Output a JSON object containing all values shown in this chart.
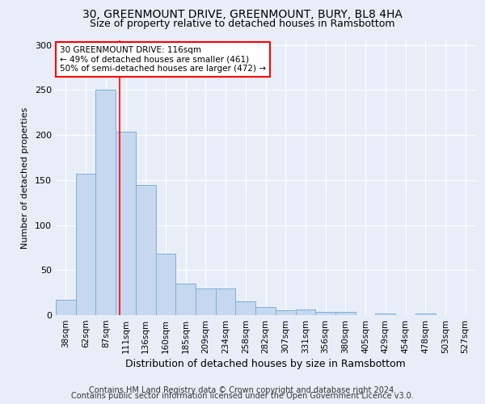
{
  "title1": "30, GREENMOUNT DRIVE, GREENMOUNT, BURY, BL8 4HA",
  "title2": "Size of property relative to detached houses in Ramsbottom",
  "xlabel": "Distribution of detached houses by size in Ramsbottom",
  "ylabel": "Number of detached properties",
  "footer1": "Contains HM Land Registry data © Crown copyright and database right 2024.",
  "footer2": "Contains public sector information licensed under the Open Government Licence v3.0.",
  "bin_labels": [
    "38sqm",
    "62sqm",
    "87sqm",
    "111sqm",
    "136sqm",
    "160sqm",
    "185sqm",
    "209sqm",
    "234sqm",
    "258sqm",
    "282sqm",
    "307sqm",
    "331sqm",
    "356sqm",
    "380sqm",
    "405sqm",
    "429sqm",
    "454sqm",
    "478sqm",
    "503sqm",
    "527sqm"
  ],
  "bar_values": [
    17,
    157,
    250,
    204,
    144,
    68,
    35,
    30,
    30,
    15,
    9,
    5,
    6,
    4,
    4,
    0,
    2,
    0,
    2,
    0,
    0
  ],
  "bar_color": "#c5d8f0",
  "bar_edge_color": "#7fafd4",
  "annotation_text": "30 GREENMOUNT DRIVE: 116sqm\n← 49% of detached houses are smaller (461)\n50% of semi-detached houses are larger (472) →",
  "annotation_box_color": "white",
  "annotation_box_edge_color": "red",
  "vline_color": "red",
  "ylim": [
    0,
    305
  ],
  "background_color": "#e8eef8",
  "grid_color": "#ffffff",
  "title1_fontsize": 10,
  "title2_fontsize": 9,
  "xlabel_fontsize": 9,
  "ylabel_fontsize": 8,
  "footer_fontsize": 7,
  "tick_fontsize": 7.5,
  "annot_fontsize": 7.5
}
